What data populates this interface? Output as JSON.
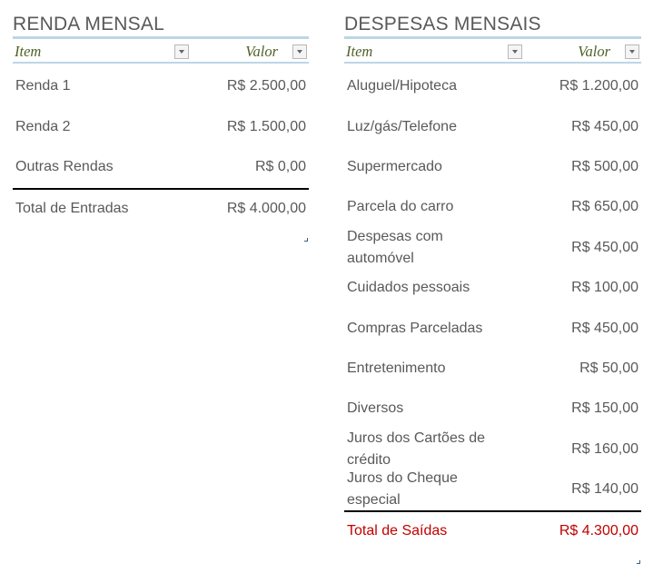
{
  "income": {
    "title": "RENDA MENSAL",
    "header": {
      "item": "Item",
      "value": "Valor"
    },
    "rows": [
      {
        "label": "Renda 1",
        "value": "R$ 2.500,00"
      },
      {
        "label": "Renda 2",
        "value": "R$ 1.500,00"
      },
      {
        "label": "Outras Rendas",
        "value": "R$ 0,00"
      }
    ],
    "total": {
      "label": "Total de Entradas",
      "value": "R$ 4.000,00"
    }
  },
  "expenses": {
    "title": "DESPESAS MENSAIS",
    "header": {
      "item": "Item",
      "value": "Valor"
    },
    "rows": [
      {
        "label": "Aluguel/Hipoteca",
        "value": "R$ 1.200,00"
      },
      {
        "label": "Luz/gás/Telefone",
        "value": "R$ 450,00"
      },
      {
        "label": "Supermercado",
        "value": "R$ 500,00"
      },
      {
        "label": "Parcela do carro",
        "value": "R$ 650,00"
      },
      {
        "label": "Despesas com automóvel",
        "value": "R$ 450,00"
      },
      {
        "label": "Cuidados pessoais",
        "value": "R$ 100,00"
      },
      {
        "label": "Compras Parceladas",
        "value": "R$ 450,00"
      },
      {
        "label": "Entretenimento",
        "value": "R$ 50,00"
      },
      {
        "label": "Diversos",
        "value": "R$ 150,00"
      },
      {
        "label": "Juros dos Cartões de crédito",
        "value": "R$ 160,00"
      },
      {
        "label": "Juros do Cheque especial",
        "value": "R$ 140,00"
      }
    ],
    "total": {
      "label": "Total de Saídas",
      "value": "R$ 4.300,00"
    }
  },
  "colors": {
    "header_text": "#4f6228",
    "header_border": "#bcd6e8",
    "body_text": "#595959",
    "expense_total": "#c00000"
  }
}
